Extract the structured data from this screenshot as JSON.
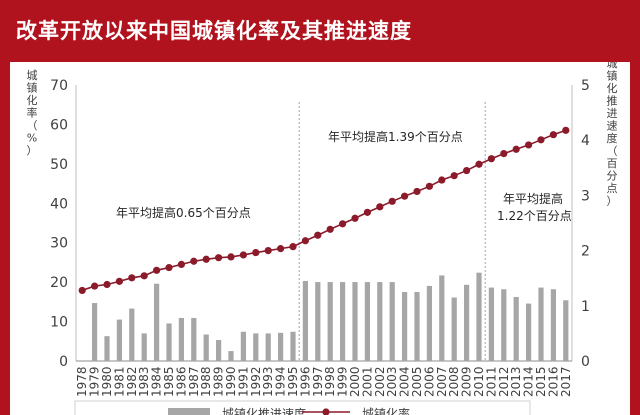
{
  "title": "改革开放以来中国城镇化率及其推进速度",
  "colors": {
    "background": "#b0131d",
    "bar": "#a6a6a6",
    "line": "#8b1a2b",
    "divider": "#9aa5b1"
  },
  "chart_data": {
    "type": "bar+line",
    "title": "改革开放以来中国城镇化率及其推进速度",
    "categories": [
      "1978",
      "1979",
      "1980",
      "1981",
      "1982",
      "1983",
      "1984",
      "1985",
      "1986",
      "1987",
      "1988",
      "1989",
      "1990",
      "1991",
      "1992",
      "1993",
      "1994",
      "1995",
      "1996",
      "1997",
      "1998",
      "1999",
      "2000",
      "2001",
      "2002",
      "2003",
      "2004",
      "2005",
      "2006",
      "2007",
      "2008",
      "2009",
      "2010",
      "2011",
      "2012",
      "2013",
      "2014",
      "2015",
      "2016",
      "2017"
    ],
    "y_left": {
      "label": "城镇化率（%）",
      "min": 0,
      "max": 70,
      "ticks": [
        0,
        10,
        20,
        30,
        40,
        50,
        60,
        70
      ]
    },
    "y_right": {
      "label": "城镇化推进速度（百分点）",
      "min": 0,
      "max": 5,
      "ticks": [
        0,
        1,
        2,
        3,
        4,
        5
      ]
    },
    "series": [
      {
        "name": "城镇化推进速度",
        "type": "bar",
        "axis": "right",
        "values": [
          null,
          1.05,
          0.45,
          0.75,
          0.95,
          0.5,
          1.4,
          0.68,
          0.78,
          0.78,
          0.48,
          0.38,
          0.18,
          0.53,
          0.5,
          0.5,
          0.51,
          0.53,
          1.45,
          1.43,
          1.43,
          1.43,
          1.43,
          1.43,
          1.43,
          1.43,
          1.25,
          1.25,
          1.36,
          1.55,
          1.15,
          1.38,
          1.6,
          1.33,
          1.3,
          1.16,
          1.04,
          1.33,
          1.3,
          1.1
        ]
      },
      {
        "name": "城镇化率",
        "type": "line",
        "axis": "left",
        "values": [
          17.9,
          19.0,
          19.4,
          20.2,
          21.1,
          21.6,
          23.0,
          23.7,
          24.5,
          25.3,
          25.8,
          26.2,
          26.4,
          26.9,
          27.5,
          28.0,
          28.5,
          29.0,
          30.5,
          31.9,
          33.4,
          34.8,
          36.2,
          37.7,
          39.1,
          40.5,
          41.8,
          43.0,
          44.3,
          45.9,
          47.0,
          48.3,
          49.9,
          51.3,
          52.6,
          53.7,
          54.8,
          56.1,
          57.4,
          58.5
        ]
      }
    ],
    "dividers": [
      "1995",
      "2010"
    ],
    "annotations": [
      "年平均提高0.65个百分点",
      "年平均提高1.39个百分点",
      "年平均提高",
      "1.22个百分点"
    ],
    "legend": {
      "position": "bottom",
      "labels": [
        "城镇化推进速度",
        "城镇化率"
      ]
    }
  }
}
